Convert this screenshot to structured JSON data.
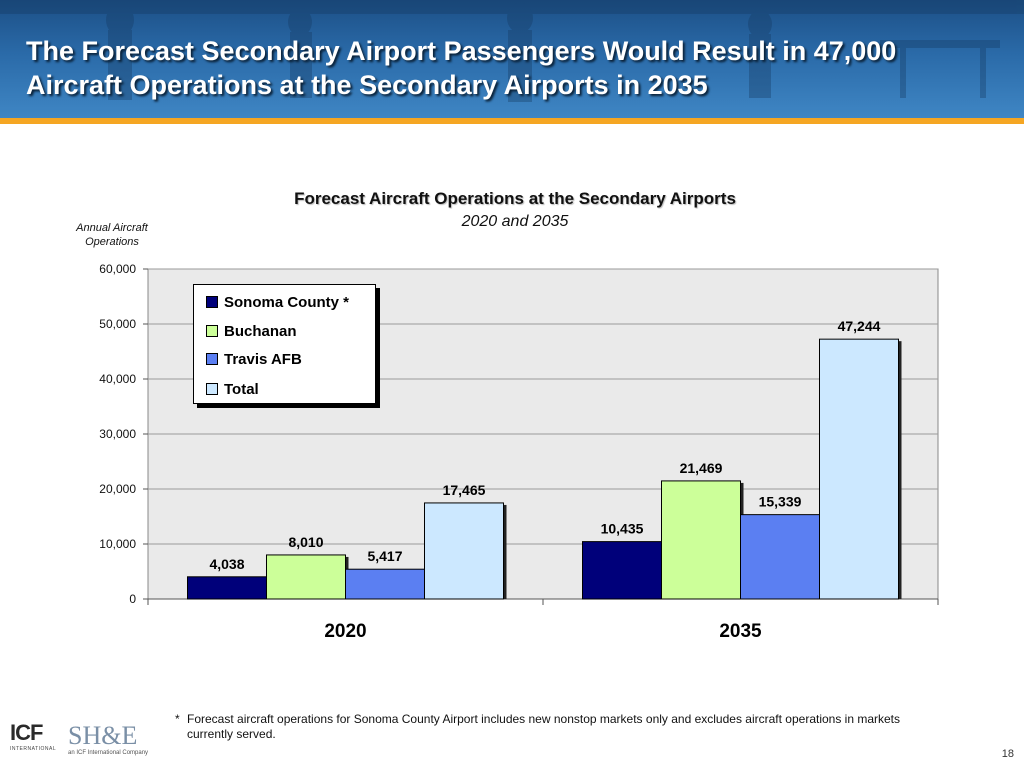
{
  "slide": {
    "title": "The Forecast Secondary Airport Passengers Would Result in 47,000 Aircraft Operations at the Secondary Airports in 2035",
    "footnote_marker": "*",
    "footnote": "Forecast aircraft operations for Sonoma County Airport includes new nonstop markets only and excludes aircraft operations in markets currently served.",
    "page_number": "18",
    "logos": {
      "icf": "ICF",
      "icf_sub": "INTERNATIONAL",
      "she": "SH&E",
      "she_sub": "an ICF International Company"
    },
    "colors": {
      "header": "#2a6aa8",
      "accent_rule": "#f5a623"
    }
  },
  "chart_data": {
    "type": "bar",
    "title": "Forecast Aircraft Operations at the Secondary Airports",
    "subtitle": "2020 and 2035",
    "ylabel": "Annual Aircraft Operations",
    "xlabel": "",
    "ylim": [
      0,
      60000
    ],
    "yticks": [
      0,
      10000,
      20000,
      30000,
      40000,
      50000,
      60000
    ],
    "ytick_labels": [
      "0",
      "10,000",
      "20,000",
      "30,000",
      "40,000",
      "50,000",
      "60,000"
    ],
    "categories": [
      "2020",
      "2035"
    ],
    "series": [
      {
        "name": "Sonoma County *",
        "color": "#00007a",
        "values": [
          4038,
          10435
        ],
        "labels": [
          "4,038",
          "10,435"
        ]
      },
      {
        "name": "Buchanan",
        "color": "#ccff99",
        "values": [
          8010,
          21469
        ],
        "labels": [
          "8,010",
          "21,469"
        ]
      },
      {
        "name": "Travis AFB",
        "color": "#5b7ff2",
        "values": [
          5417,
          15339
        ],
        "labels": [
          "5,417",
          "15,339"
        ]
      },
      {
        "name": "Total",
        "color": "#cce8ff",
        "values": [
          17465,
          47244
        ],
        "labels": [
          "17,465",
          "47,244"
        ]
      }
    ],
    "grid": true,
    "legend_position": "top-left"
  }
}
